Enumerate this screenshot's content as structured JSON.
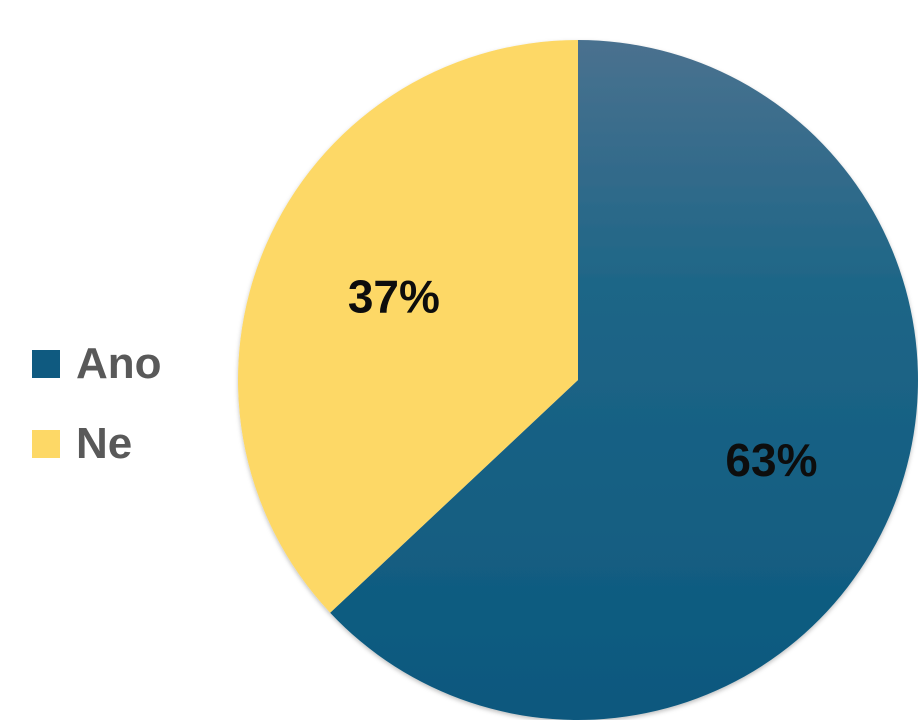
{
  "chart_data": {
    "type": "pie",
    "categories": [
      "Ano",
      "Ne"
    ],
    "values": [
      63,
      37
    ],
    "labels": [
      "63%",
      "37%"
    ],
    "colors": [
      "#0f5a80",
      "#fdd866"
    ],
    "legend_position": "left",
    "start_angle": "top",
    "direction": "clockwise"
  }
}
